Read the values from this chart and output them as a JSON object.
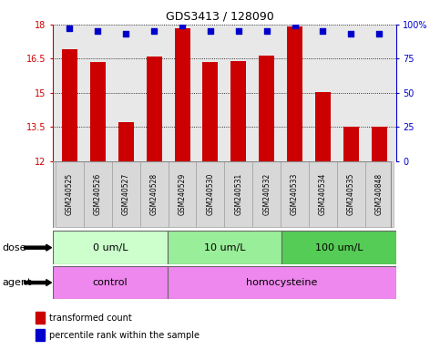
{
  "title": "GDS3413 / 128090",
  "samples": [
    "GSM240525",
    "GSM240526",
    "GSM240527",
    "GSM240528",
    "GSM240529",
    "GSM240530",
    "GSM240531",
    "GSM240532",
    "GSM240533",
    "GSM240534",
    "GSM240535",
    "GSM240848"
  ],
  "bar_values": [
    16.9,
    16.35,
    13.7,
    16.6,
    17.85,
    16.35,
    16.4,
    16.65,
    17.9,
    15.05,
    13.5,
    13.5
  ],
  "percentile_values": [
    97,
    95,
    93,
    95,
    99,
    95,
    95,
    95,
    99,
    95,
    93,
    93
  ],
  "bar_color": "#cc0000",
  "dot_color": "#0000cc",
  "ymin": 12,
  "ymax": 18,
  "yticks": [
    12,
    13.5,
    15,
    16.5,
    18
  ],
  "ytick_labels": [
    "12",
    "13.5",
    "15",
    "16.5",
    "18"
  ],
  "y2min": 0,
  "y2max": 100,
  "y2ticks": [
    0,
    25,
    50,
    75,
    100
  ],
  "y2tick_labels": [
    "0",
    "25",
    "50",
    "75",
    "100%"
  ],
  "dose_groups": [
    {
      "label": "0 um/L",
      "start": 0,
      "end": 3,
      "color": "#ccffcc"
    },
    {
      "label": "10 um/L",
      "start": 4,
      "end": 7,
      "color": "#99ee99"
    },
    {
      "label": "100 um/L",
      "start": 8,
      "end": 11,
      "color": "#55cc55"
    }
  ],
  "agent_groups": [
    {
      "label": "control",
      "start": 0,
      "end": 3,
      "color": "#ee88ee"
    },
    {
      "label": "homocysteine",
      "start": 4,
      "end": 11,
      "color": "#ee88ee"
    }
  ],
  "dose_label": "dose",
  "agent_label": "agent",
  "legend_red": "transformed count",
  "legend_blue": "percentile rank within the sample",
  "axis_label_color_left": "#cc0000",
  "axis_label_color_right": "#0000cc",
  "background_color": "#ffffff",
  "plot_bg_color": "#e8e8e8",
  "label_bg_color": "#d8d8d8"
}
